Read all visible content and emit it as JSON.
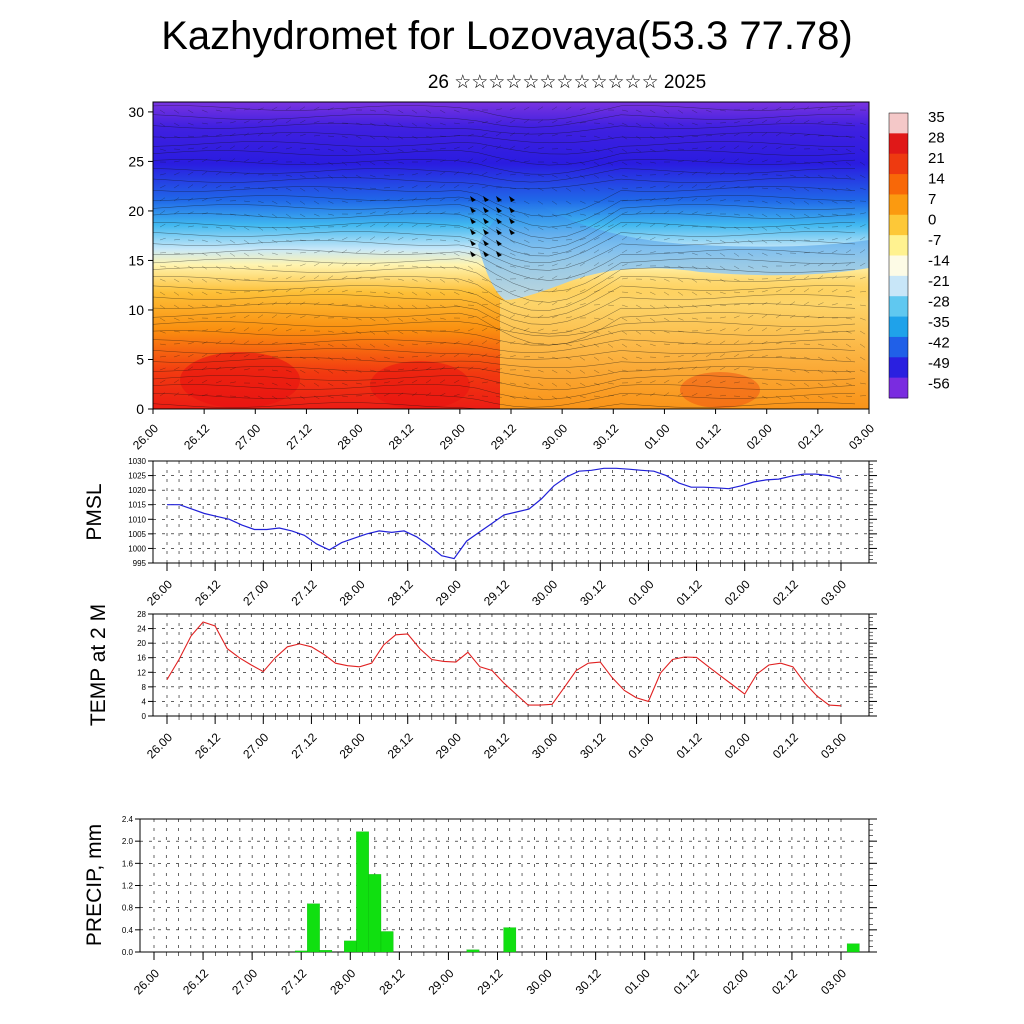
{
  "header": {
    "title": "Kazhydromet for Lozovaya(53.3 77.78)",
    "subtitle": "26 ☆☆☆☆☆☆☆☆☆☆☆☆ 2025"
  },
  "time_labels": [
    "26.00",
    "26.12",
    "27.00",
    "27.12",
    "28.00",
    "28.12",
    "29.00",
    "29.12",
    "30.00",
    "30.12",
    "01.00",
    "01.12",
    "02.00",
    "02.12",
    "03.00"
  ],
  "chart_data": [
    {
      "type": "heatmap",
      "name": "cross-section",
      "x": [
        "26.00",
        "26.12",
        "27.00",
        "27.12",
        "28.00",
        "28.12",
        "29.00",
        "29.12",
        "30.00",
        "30.12",
        "01.00",
        "01.12",
        "02.00",
        "02.12",
        "03.00"
      ],
      "yticks": [
        0,
        5,
        10,
        15,
        20,
        25,
        30
      ],
      "ylim": [
        0,
        31
      ],
      "colorbar_labels": [
        "35",
        "28",
        "21",
        "14",
        "7",
        "0",
        "-7",
        "-14",
        "-21",
        "-28",
        "-35",
        "-42",
        "-49",
        "-56"
      ],
      "colorbar_colors": [
        "#f4c8c8",
        "#e01818",
        "#ee3a10",
        "#f86808",
        "#fb9a10",
        "#fdc838",
        "#fff290",
        "#fdfbe6",
        "#c8e6f8",
        "#60c8f0",
        "#1fa2ea",
        "#2060e8",
        "#2a20e0",
        "#7a2ce0"
      ]
    },
    {
      "type": "line",
      "name": "PMSL",
      "ylabel": "PMSL",
      "ylim": [
        995,
        1030
      ],
      "yticks": [
        995,
        1000,
        1005,
        1010,
        1015,
        1020,
        1025,
        1030
      ],
      "color": "#2020d8",
      "values": [
        1015,
        1015,
        1013.5,
        1012,
        1011,
        1010,
        1008,
        1006.5,
        1006.5,
        1007,
        1006,
        1004.5,
        1001.5,
        999.5,
        1002,
        1003.5,
        1005,
        1006,
        1005.5,
        1006,
        1004,
        1001,
        997.5,
        996.5,
        1002.5,
        1005.5,
        1008.5,
        1011.5,
        1012.5,
        1013.5,
        1017,
        1021.5,
        1024.5,
        1026.5,
        1026.8,
        1027.5,
        1027.5,
        1027.2,
        1026.8,
        1026.5,
        1025,
        1022.5,
        1021,
        1021,
        1020.8,
        1020.5,
        1021.5,
        1022.8,
        1023.5,
        1023.8,
        1024.8,
        1025.5,
        1025.5,
        1025,
        1024
      ]
    },
    {
      "type": "line",
      "name": "TEMP at 2 M",
      "ylabel": "TEMP at 2 M",
      "ylim": [
        0,
        28
      ],
      "yticks": [
        0,
        4,
        8,
        12,
        16,
        20,
        24,
        28
      ],
      "color": "#e02020",
      "values": [
        10,
        15.5,
        22,
        25.8,
        24.7,
        18.5,
        16,
        14,
        12.2,
        16,
        19,
        19.8,
        19,
        17,
        14.5,
        13.8,
        13.5,
        14.5,
        19.5,
        22.3,
        22.5,
        18.5,
        15.5,
        15,
        14.8,
        17.5,
        13.5,
        12.5,
        9,
        6,
        3,
        3,
        3.2,
        7.8,
        12.5,
        14.5,
        14.8,
        10.5,
        7,
        5,
        4,
        11.8,
        15.5,
        16.2,
        16.1,
        13.5,
        11,
        8.5,
        6,
        11.5,
        14,
        14.5,
        13.5,
        9,
        5.5,
        3,
        2.8
      ]
    },
    {
      "type": "bar",
      "name": "PRECIP, mm",
      "ylabel": "PRECIP, mm",
      "ylim": [
        0,
        2.4
      ],
      "yticks": [
        "0.0",
        "0.4",
        "0.8",
        "1.2",
        "1.6",
        "2.0",
        "2.4"
      ],
      "color": "#10e010",
      "bars": [
        {
          "t": 12,
          "v": 0.02
        },
        {
          "t": 13,
          "v": 0.87
        },
        {
          "t": 14,
          "v": 0.03
        },
        {
          "t": 16,
          "v": 0.2
        },
        {
          "t": 17,
          "v": 2.17
        },
        {
          "t": 18,
          "v": 1.4
        },
        {
          "t": 19,
          "v": 0.37
        },
        {
          "t": 26,
          "v": 0.04
        },
        {
          "t": 29,
          "v": 0.44
        },
        {
          "t": 57,
          "v": 0.15
        }
      ]
    }
  ]
}
